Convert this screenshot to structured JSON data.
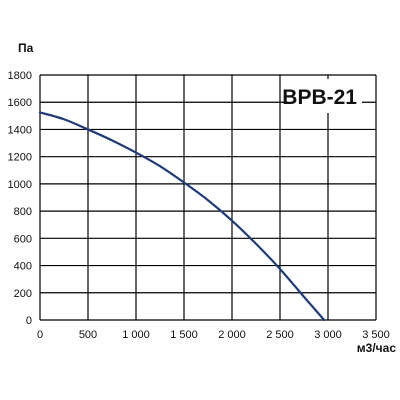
{
  "chart_data": {
    "type": "line",
    "title": "BPB-21",
    "xlabel": "м3/час",
    "ylabel": "Па",
    "xlim": [
      0,
      3500
    ],
    "ylim": [
      0,
      1800
    ],
    "grid": true,
    "x_ticks": [
      0,
      500,
      1000,
      1500,
      2000,
      2500,
      3000,
      3500
    ],
    "x_tick_labels": [
      "0",
      "500",
      "1 000",
      "1 500",
      "2 000",
      "2 500",
      "3 000",
      "3 500"
    ],
    "y_ticks": [
      0,
      200,
      400,
      600,
      800,
      1000,
      1200,
      1400,
      1600,
      1800
    ],
    "y_tick_labels": [
      "0",
      "200",
      "400",
      "600",
      "800",
      "1000",
      "1200",
      "1400",
      "1600",
      "1800"
    ],
    "series": [
      {
        "x": [
          0,
          250,
          500,
          750,
          1000,
          1250,
          1500,
          1750,
          2000,
          2250,
          2500,
          2750,
          2960
        ],
        "y": [
          1525,
          1475,
          1400,
          1320,
          1230,
          1130,
          1010,
          880,
          730,
          560,
          375,
          170,
          0
        ]
      }
    ],
    "colors": {
      "curve": "#1f3b7a",
      "grid": "#000000",
      "text": "#111111",
      "title_box": "#ffffff"
    }
  }
}
